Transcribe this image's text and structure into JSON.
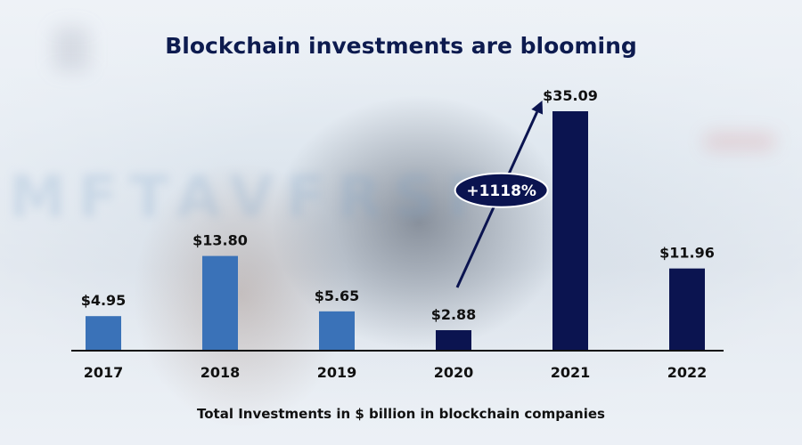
{
  "chart_data": {
    "type": "bar",
    "title": "Blockchain investments are blooming",
    "caption": "Total Investments in $ billion in blockchain companies",
    "categories": [
      "2017",
      "2018",
      "2019",
      "2020",
      "2021",
      "2022"
    ],
    "values": [
      4.95,
      13.8,
      5.65,
      2.88,
      35.09,
      11.96
    ],
    "value_labels": [
      "$4.95",
      "$13.80",
      "$5.65",
      "$2.88",
      "$35.09",
      "$11.96"
    ],
    "bar_colors": [
      "#3a72b8",
      "#3a72b8",
      "#3a72b8",
      "#0b1450",
      "#0b1450",
      "#0b1450"
    ],
    "ylim": [
      0,
      35.09
    ],
    "grid": false,
    "annotation": {
      "text": "+1118%",
      "from_category": "2020",
      "to_category": "2021"
    }
  },
  "colors": {
    "title": "#0d1b4f",
    "axis": "#111111",
    "badge": "#0b1450",
    "arrow": "#0b1450"
  }
}
